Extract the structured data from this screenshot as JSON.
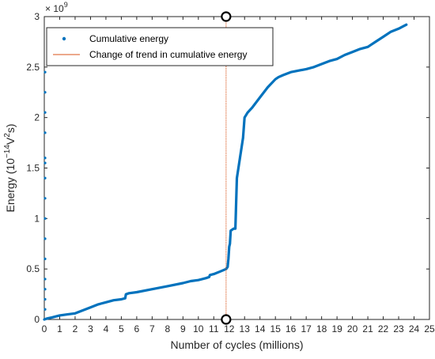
{
  "chart_data": {
    "type": "line",
    "xlabel": "Number of cycles (millions)",
    "ylabel_prefix": "Energy (10",
    "ylabel_exp1": "−14",
    "ylabel_mid": "V",
    "ylabel_exp2": "2",
    "ylabel_suffix": "s)",
    "y_multiplier_base": "× 10",
    "y_multiplier_exp": "9",
    "xlim": [
      0,
      25
    ],
    "ylim": [
      0,
      3
    ],
    "xticks": [
      0,
      1,
      2,
      3,
      4,
      5,
      6,
      7,
      8,
      9,
      10,
      11,
      12,
      13,
      14,
      15,
      16,
      17,
      18,
      19,
      20,
      21,
      22,
      23,
      24,
      25
    ],
    "yticks": [
      0,
      0.5,
      1,
      1.5,
      2,
      2.5,
      3
    ],
    "ytick_labels": [
      "0",
      "0.5",
      "1",
      "1.5",
      "2",
      "2.5",
      "3"
    ],
    "legend_position": "top-left",
    "series": [
      {
        "name": "Cumulative energy",
        "color": "#0072BD",
        "style": "dots",
        "x": [
          0,
          0.2,
          0.5,
          1,
          1.5,
          2,
          2.5,
          3,
          3.5,
          4,
          4.5,
          5,
          5.25,
          5.3,
          5.5,
          6,
          7,
          8,
          9,
          9.5,
          10,
          10.5,
          10.7,
          10.75,
          11,
          11.5,
          11.8,
          11.9,
          11.95,
          12.0,
          12.05,
          12.1,
          12.3,
          12.4,
          12.5,
          12.7,
          12.9,
          13.0,
          13.2,
          13.5,
          14,
          14.5,
          15,
          15.2,
          15.5,
          16,
          17,
          17.5,
          18,
          18.5,
          19,
          19.5,
          20,
          20.5,
          21,
          21.2,
          21.5,
          22,
          22.5,
          23,
          23.5
        ],
        "y": [
          0,
          0.01,
          0.02,
          0.04,
          0.05,
          0.06,
          0.09,
          0.12,
          0.15,
          0.17,
          0.19,
          0.2,
          0.21,
          0.25,
          0.26,
          0.27,
          0.3,
          0.33,
          0.36,
          0.38,
          0.39,
          0.41,
          0.42,
          0.44,
          0.45,
          0.48,
          0.5,
          0.52,
          0.6,
          0.72,
          0.75,
          0.88,
          0.9,
          0.9,
          1.4,
          1.6,
          1.8,
          2.0,
          2.05,
          2.1,
          2.2,
          2.3,
          2.38,
          2.4,
          2.42,
          2.45,
          2.48,
          2.5,
          2.53,
          2.56,
          2.58,
          2.62,
          2.65,
          2.68,
          2.7,
          2.72,
          2.75,
          2.8,
          2.85,
          2.88,
          2.92
        ]
      },
      {
        "name": "Change of trend in cumulative energy",
        "color": "#D95319",
        "style": "vline",
        "x_value": 11.8
      }
    ],
    "left_edge_markers_y": [
      0.1,
      0.2,
      0.3,
      0.4,
      0.6,
      0.8,
      1.0,
      1.2,
      1.4,
      1.55,
      1.6,
      1.85,
      2.05,
      2.25,
      2.45
    ],
    "vline_endpoints_y": [
      0,
      3
    ]
  }
}
